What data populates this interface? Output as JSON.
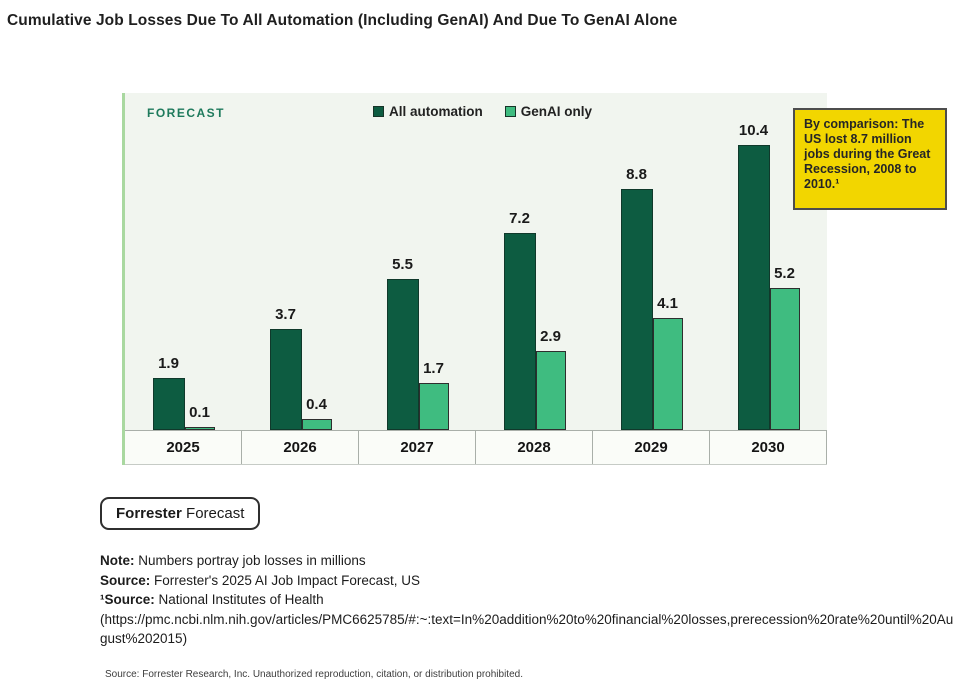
{
  "page": {
    "title": "Cumulative Job Losses Due To All Automation (Including GenAI) And Due To GenAI Alone"
  },
  "chart_data": {
    "type": "bar",
    "forecast_label": "FORECAST",
    "categories": [
      "2025",
      "2026",
      "2027",
      "2028",
      "2029",
      "2030"
    ],
    "series": [
      {
        "name": "All automation",
        "color": "#0d5c41",
        "values": [
          1.9,
          3.7,
          5.5,
          7.2,
          8.8,
          10.4
        ]
      },
      {
        "name": "GenAI only",
        "color": "#3fbc80",
        "values": [
          0.1,
          0.4,
          1.7,
          2.9,
          4.1,
          5.2
        ]
      }
    ],
    "value_labels": [
      [
        "1.9",
        "3.7",
        "5.5",
        "7.2",
        "8.8",
        "10.4"
      ],
      [
        "0.1",
        "0.4",
        "1.7",
        "2.9",
        "4.1",
        "5.2"
      ]
    ],
    "ylim": [
      0,
      11
    ],
    "grid": false,
    "legend_position": "top-center",
    "annotation": "By comparison: The US lost 8.7 million jobs during the Great Recession, 2008 to 2010.¹"
  },
  "button": {
    "label_bold": "Forrester",
    "label_regular": " Forecast"
  },
  "notes": {
    "note_label": "Note:",
    "note_text": " Numbers portray job losses in millions",
    "source_label": "Source:",
    "source_text": " Forrester's 2025 AI Job Impact Forecast, US",
    "source2_label": "¹Source:",
    "source2_text": " National Institutes of Health",
    "source2_url": "(https://pmc.ncbi.nlm.nih.gov/articles/PMC6625785/#:~:text=In%20addition%20to%20financial%20losses,prerecession%20rate%20until%20August%202015)"
  },
  "footer": {
    "text": "Source: Forrester Research, Inc. Unauthorized reproduction, citation, or distribution prohibited."
  },
  "colors": {
    "accent_stripe": "#a9d8a0",
    "panel_bg": "#f1f5ef",
    "all_automation": "#0d5c41",
    "genai_only": "#3fbc80",
    "callout_bg": "#f2d600",
    "forecast_text": "#1e7a5c"
  }
}
